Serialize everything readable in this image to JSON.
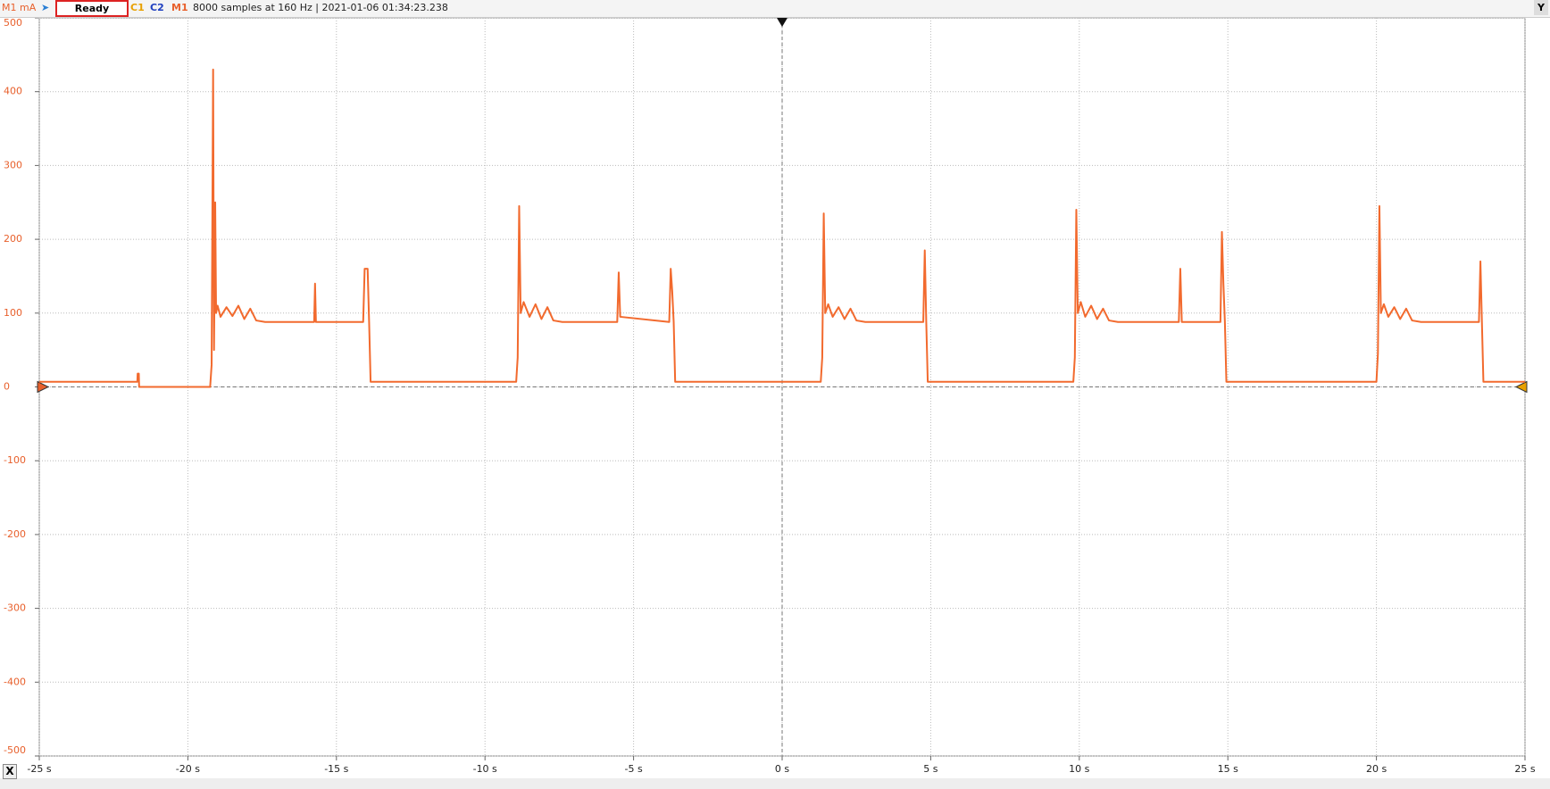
{
  "toolbar": {
    "channel_unit": "M1 mA",
    "status": "Ready",
    "c1": "C1",
    "c2": "C2",
    "m1": "M1",
    "info": "8000 samples at 160 Hz | 2021-01-06 01:34:23.238",
    "x_button": "X",
    "y_button": "Y"
  },
  "chart_data": {
    "type": "line",
    "color": "#f26a2e",
    "grid": true,
    "xlim": [
      -25,
      25
    ],
    "xticks": [
      {
        "value": -25,
        "label": "-25 s"
      },
      {
        "value": -20,
        "label": "-20 s"
      },
      {
        "value": -15,
        "label": "-15 s"
      },
      {
        "value": -10,
        "label": "-10 s"
      },
      {
        "value": -5,
        "label": "-5 s"
      },
      {
        "value": 0,
        "label": "0 s"
      },
      {
        "value": 5,
        "label": "5 s"
      },
      {
        "value": 10,
        "label": "10 s"
      },
      {
        "value": 15,
        "label": "15 s"
      },
      {
        "value": 20,
        "label": "20 s"
      },
      {
        "value": 25,
        "label": "25 s"
      }
    ],
    "ylim": [
      -500,
      500
    ],
    "yticks": [
      500,
      400,
      300,
      200,
      100,
      0,
      -100,
      -200,
      -300,
      -400,
      -500
    ],
    "x": [
      -25,
      -21.7,
      -21.69,
      -21.65,
      -21.64,
      -19.25,
      -19.2,
      -19.15,
      -19.12,
      -19.08,
      -19.05,
      -19.0,
      -18.9,
      -18.7,
      -18.5,
      -18.3,
      -18.1,
      -17.9,
      -17.7,
      -17.4,
      -15.75,
      -15.72,
      -15.69,
      -14.1,
      -14.05,
      -13.95,
      -13.9,
      -13.85,
      -8.95,
      -8.9,
      -8.85,
      -8.8,
      -8.7,
      -8.5,
      -8.3,
      -8.1,
      -7.9,
      -7.7,
      -7.4,
      -5.55,
      -5.5,
      -5.45,
      -3.8,
      -3.75,
      -3.7,
      -3.65,
      -3.6,
      1.3,
      1.35,
      1.4,
      1.45,
      1.55,
      1.7,
      1.9,
      2.1,
      2.3,
      2.5,
      2.8,
      4.75,
      4.8,
      4.85,
      4.9,
      9.8,
      9.85,
      9.9,
      9.95,
      10.05,
      10.2,
      10.4,
      10.6,
      10.8,
      11.0,
      11.3,
      13.35,
      13.4,
      13.45,
      14.75,
      14.8,
      14.85,
      14.9,
      14.95,
      20.0,
      20.05,
      20.1,
      20.15,
      20.25,
      20.4,
      20.6,
      20.8,
      21.0,
      21.2,
      21.5,
      23.45,
      23.5,
      23.55,
      23.6,
      25
    ],
    "values": [
      7,
      7,
      18,
      18,
      0,
      0,
      30,
      430,
      50,
      250,
      100,
      110,
      95,
      108,
      96,
      110,
      92,
      106,
      90,
      88,
      88,
      140,
      88,
      88,
      160,
      160,
      88,
      7,
      7,
      40,
      245,
      100,
      115,
      95,
      112,
      92,
      108,
      90,
      88,
      88,
      155,
      95,
      88,
      160,
      130,
      88,
      7,
      7,
      40,
      235,
      100,
      112,
      95,
      108,
      92,
      106,
      90,
      88,
      88,
      185,
      88,
      7,
      7,
      40,
      240,
      100,
      115,
      95,
      110,
      92,
      106,
      90,
      88,
      88,
      160,
      88,
      88,
      210,
      140,
      88,
      7,
      7,
      45,
      245,
      100,
      112,
      95,
      108,
      92,
      106,
      90,
      88,
      88,
      170,
      88,
      7,
      7
    ]
  }
}
